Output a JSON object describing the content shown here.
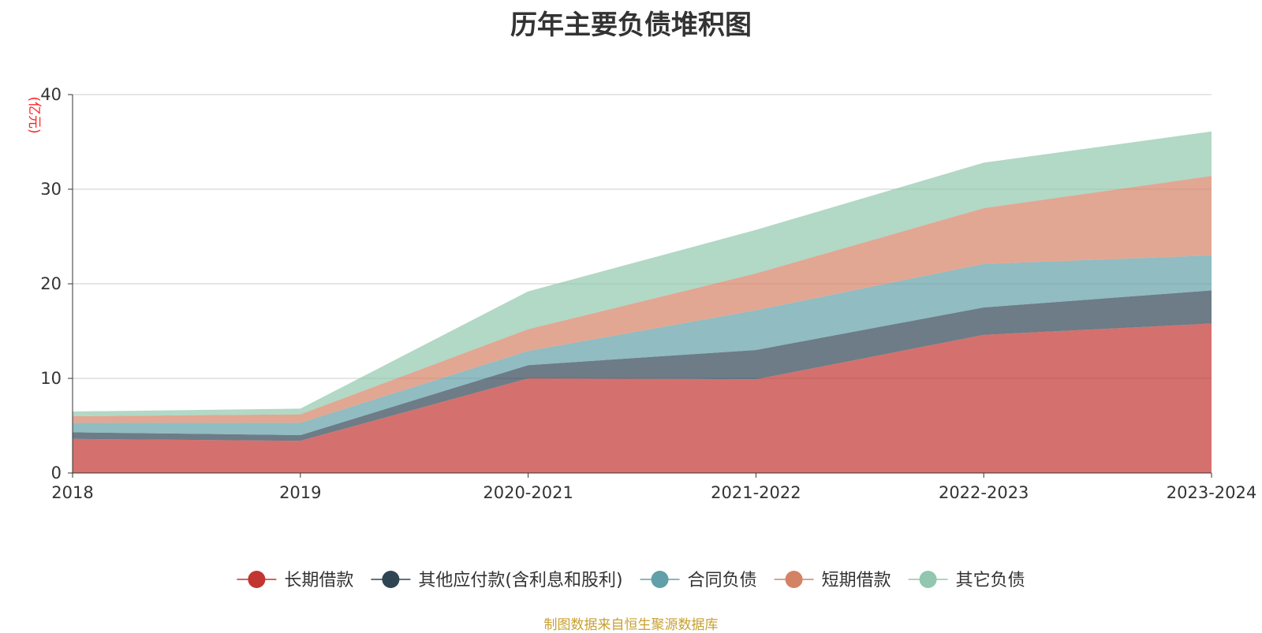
{
  "chart_data": {
    "type": "area",
    "stacked": true,
    "title": "历年主要负债堆积图",
    "ylabel": "(亿元)",
    "ylim": [
      0,
      40
    ],
    "yticks": [
      0,
      10,
      20,
      30,
      40
    ],
    "categories": [
      "2018",
      "2019",
      "2020-2021",
      "2021-2022",
      "2022-2023",
      "2023-2024"
    ],
    "grid": true,
    "legend_position": "bottom",
    "series": [
      {
        "name": "长期借款",
        "color": "#c23531",
        "values": [
          3.6,
          3.4,
          10.0,
          9.9,
          14.6,
          15.8
        ]
      },
      {
        "name": "其他应付款(含利息和股利)",
        "color": "#2f4554",
        "values": [
          0.7,
          0.6,
          1.4,
          3.1,
          2.9,
          3.5
        ]
      },
      {
        "name": "合同负债",
        "color": "#61a0a8",
        "values": [
          1.0,
          1.3,
          1.5,
          4.2,
          4.6,
          3.7
        ]
      },
      {
        "name": "短期借款",
        "color": "#d48265",
        "values": [
          0.7,
          0.9,
          2.3,
          3.9,
          5.9,
          8.4
        ]
      },
      {
        "name": "其它负债",
        "color": "#91c7ae",
        "values": [
          0.5,
          0.6,
          4.0,
          4.6,
          4.8,
          4.7
        ]
      }
    ]
  },
  "source_note": "制图数据来自恒生聚源数据库"
}
